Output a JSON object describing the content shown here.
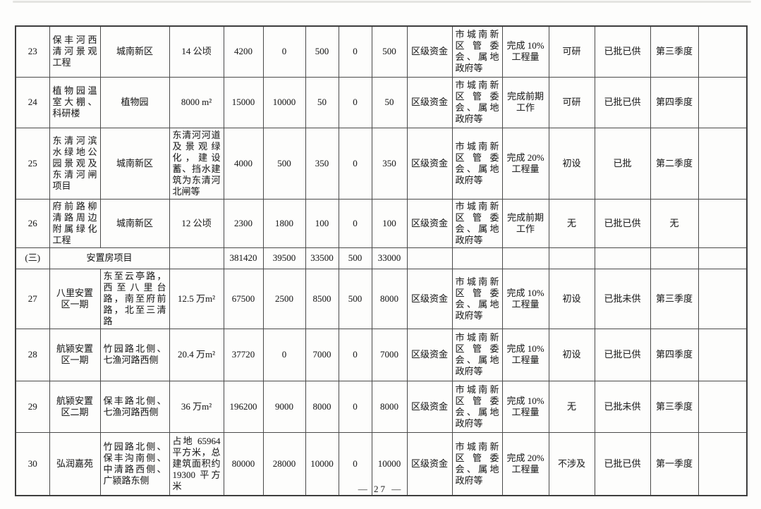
{
  "page": {
    "footer_page_number": "— 27 —"
  },
  "table": {
    "columns_count": 16,
    "rows": [
      {
        "section": false,
        "cells": [
          "23",
          "保丰河西清河景观工程",
          "城南新区",
          "14 公顷",
          "4200",
          "0",
          "500",
          "0",
          "500",
          "区级资金",
          "市城南新区管委会、属地政府等",
          "完成 10% 工程量",
          "可研",
          "已批已供",
          "第三季度",
          ""
        ]
      },
      {
        "section": false,
        "cells": [
          "24",
          "植物园温室大棚、科研楼",
          "植物园",
          "8000 m²",
          "15000",
          "10000",
          "50",
          "0",
          "50",
          "区级资金",
          "市城南新区管委会、属地政府等",
          "完成前期工作",
          "可研",
          "已批已供",
          "第四季度",
          ""
        ]
      },
      {
        "section": false,
        "cells": [
          "25",
          "东清河滨水绿地公园景观及东清河闸项目",
          "城南新区",
          "东清河河道及景观绿化，建设蓄、挡水建筑为东清河北闸等",
          "4000",
          "500",
          "350",
          "0",
          "350",
          "区级资金",
          "市城南新区管委会、属地政府等",
          "完成 20% 工程量",
          "初设",
          "已批",
          "第二季度",
          ""
        ]
      },
      {
        "section": false,
        "cells": [
          "26",
          "府前路柳清路周边附属绿化工程",
          "城南新区",
          "12 公顷",
          "2300",
          "1800",
          "100",
          "0",
          "100",
          "区级资金",
          "市城南新区管委会、属地政府等",
          "完成前期工作",
          "无",
          "已批已供",
          "无",
          ""
        ]
      },
      {
        "section": true,
        "cells": [
          "(三)",
          "安置房项目",
          "",
          "381420",
          "39500",
          "33500",
          "500",
          "33000",
          "",
          "",
          "",
          "",
          "",
          "",
          ""
        ]
      },
      {
        "section": false,
        "cells": [
          "27",
          "八里安置区一期",
          "东至云亭路，西至八里台路，南至府前路，北至三清路",
          "12.5 万m²",
          "67500",
          "2500",
          "8500",
          "500",
          "8000",
          "区级资金",
          "市城南新区管委会、属地政府等",
          "完成 10% 工程量",
          "初设",
          "已批未供",
          "第三季度",
          ""
        ]
      },
      {
        "section": false,
        "cells": [
          "28",
          "航颍安置区一期",
          "竹园路北侧、七渔河路西侧",
          "20.4 万m²",
          "37720",
          "0",
          "7000",
          "0",
          "7000",
          "区级资金",
          "市城南新区管委会、属地政府等",
          "完成 10% 工程量",
          "初设",
          "已批已供",
          "第四季度",
          ""
        ]
      },
      {
        "section": false,
        "cells": [
          "29",
          "航颍安置区二期",
          "保丰路北侧、七渔河路西侧",
          "36 万m²",
          "196200",
          "9000",
          "8000",
          "0",
          "8000",
          "区级资金",
          "市城南新区管委会、属地政府等",
          "完成 10% 工程量",
          "无",
          "已批未供",
          "第三季度",
          ""
        ]
      },
      {
        "section": false,
        "cells": [
          "30",
          "弘润嘉苑",
          "竹园路北侧、保丰沟南侧、中清路西侧、广颍路东侧",
          "占地 65964 平方米，总建筑面积约 19300 平方米",
          "80000",
          "28000",
          "10000",
          "0",
          "10000",
          "区级资金",
          "市城南新区管委会、属地政府等",
          "完成 20% 工程量",
          "不涉及",
          "已批已供",
          "第一季度",
          ""
        ]
      }
    ]
  }
}
